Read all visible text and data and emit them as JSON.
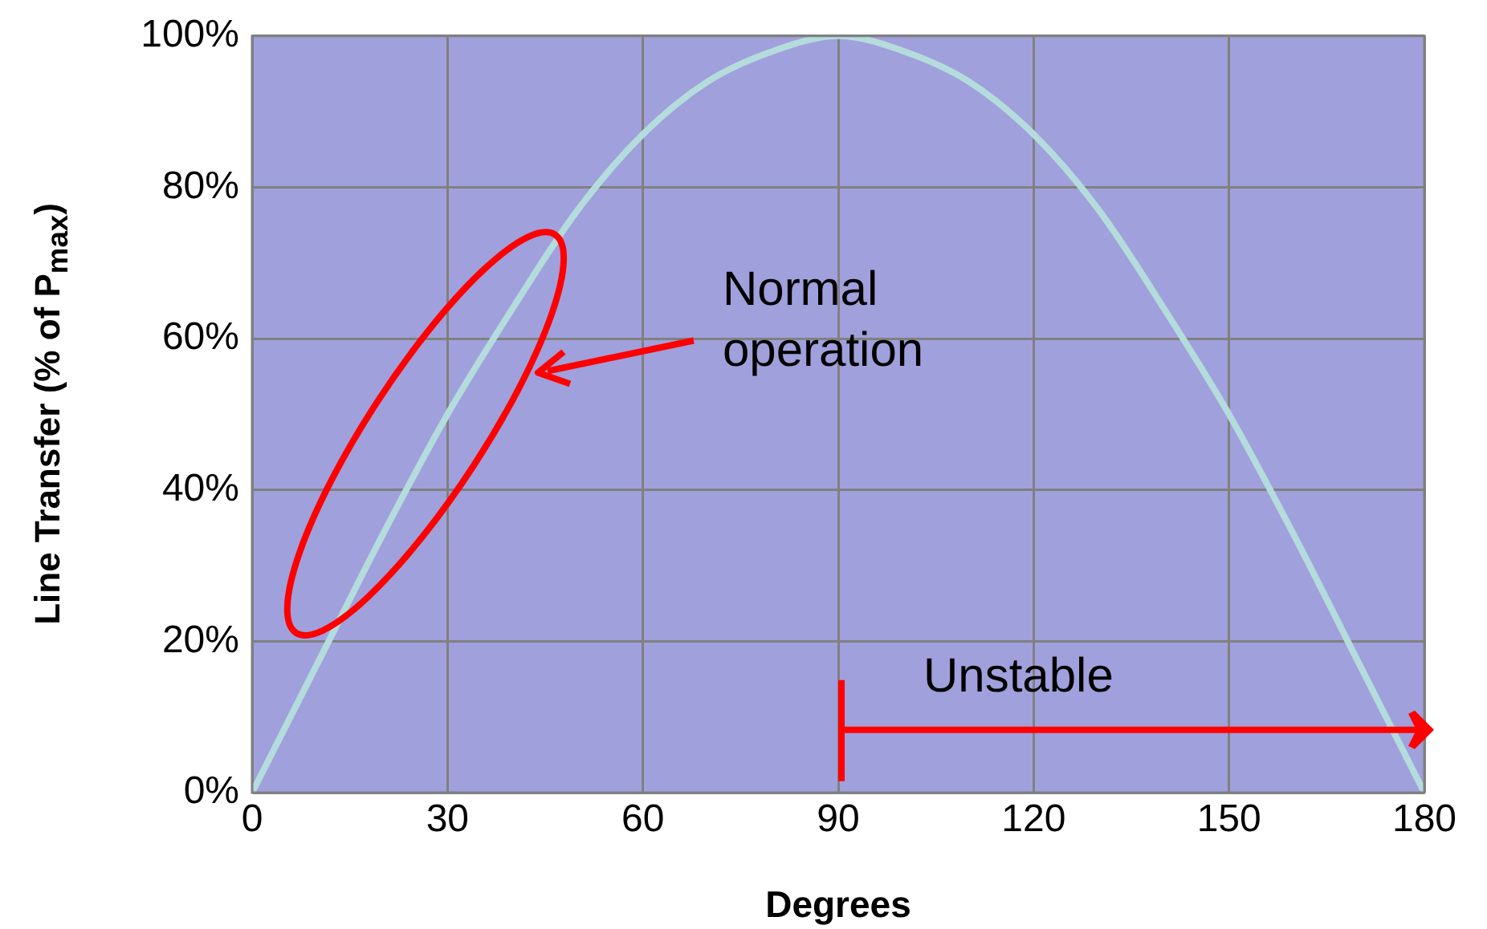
{
  "chart_data": {
    "type": "line",
    "xlabel": "Degrees",
    "ylabel": "Line Transfer (% of P$_{max}$)",
    "x": [
      0,
      10,
      20,
      30,
      40,
      50,
      60,
      70,
      80,
      90,
      100,
      110,
      120,
      130,
      140,
      150,
      160,
      170,
      180
    ],
    "series": [
      {
        "color": "#b4dcdc",
        "values": [
          0,
          17,
          34,
          50,
          64,
          77,
          87,
          94,
          98,
          100,
          98,
          94,
          87,
          77,
          64,
          50,
          34,
          17,
          0
        ]
      }
    ],
    "xlim": [
      0,
      180
    ],
    "xticks": [
      0,
      30,
      60,
      90,
      120,
      150,
      180
    ],
    "ylim": [
      0,
      100
    ],
    "yticks": [
      {
        "value": 0,
        "label": "0%"
      },
      {
        "value": 20,
        "label": "20%"
      },
      {
        "value": 40,
        "label": "40%"
      },
      {
        "value": 60,
        "label": "60%"
      },
      {
        "value": 80,
        "label": "80%"
      },
      {
        "value": 100,
        "label": "100%"
      }
    ],
    "grid": true,
    "legend": false,
    "marker": "none",
    "line_style": "solid",
    "annotations": [
      "Normal operation",
      "Unstable"
    ]
  }
}
